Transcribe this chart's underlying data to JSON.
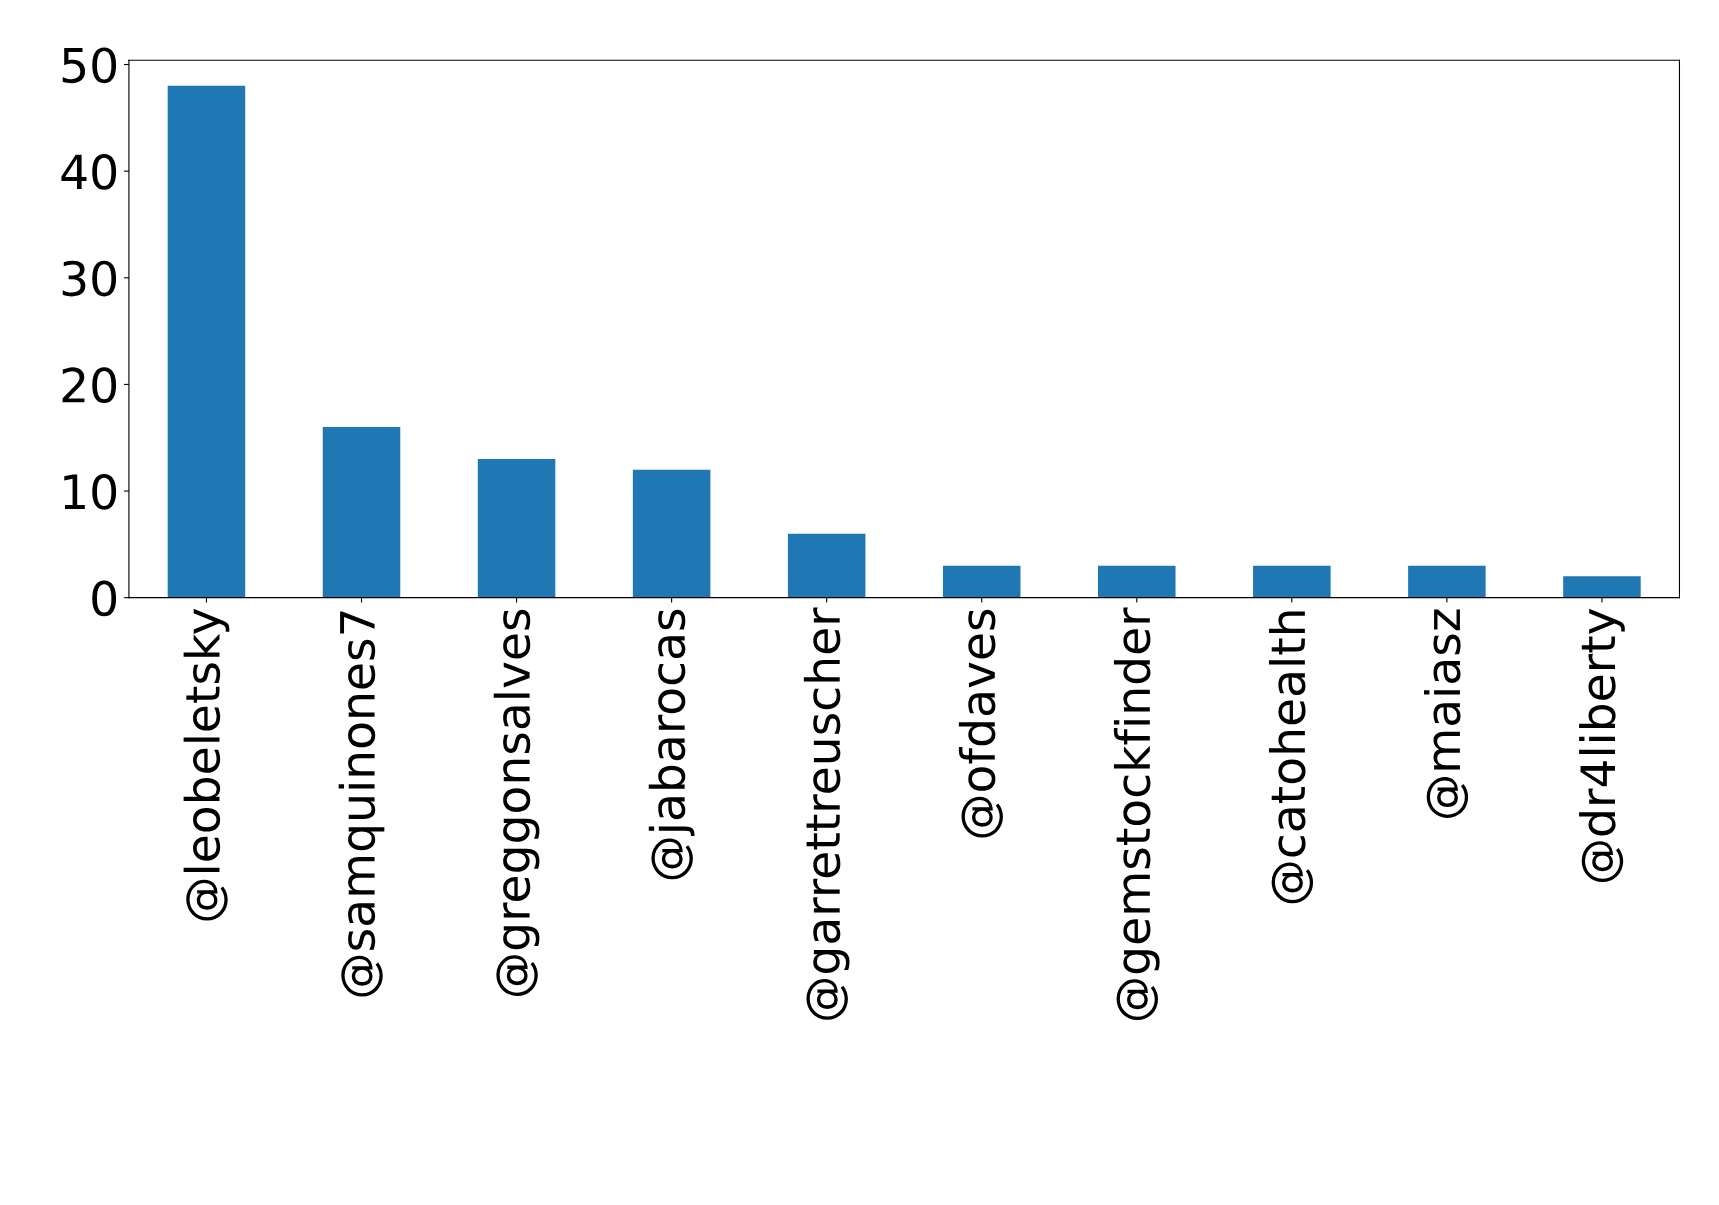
{
  "chart_data": {
    "type": "bar",
    "categories": [
      "@leobeletsky",
      "@samquinones7",
      "@greggonsalves",
      "@jabarocas",
      "@garrettreuscher",
      "@ofdaves",
      "@gemstockfinder",
      "@catohealth",
      "@maiasz",
      "@dr4liberty"
    ],
    "values": [
      48,
      16,
      13,
      12,
      6,
      3,
      3,
      3,
      3,
      2
    ],
    "color": "#1f77b4",
    "ylim": [
      0,
      50.4
    ],
    "yticks": [
      0,
      10,
      20,
      30,
      40,
      50
    ],
    "grid": false,
    "legend": false
  }
}
